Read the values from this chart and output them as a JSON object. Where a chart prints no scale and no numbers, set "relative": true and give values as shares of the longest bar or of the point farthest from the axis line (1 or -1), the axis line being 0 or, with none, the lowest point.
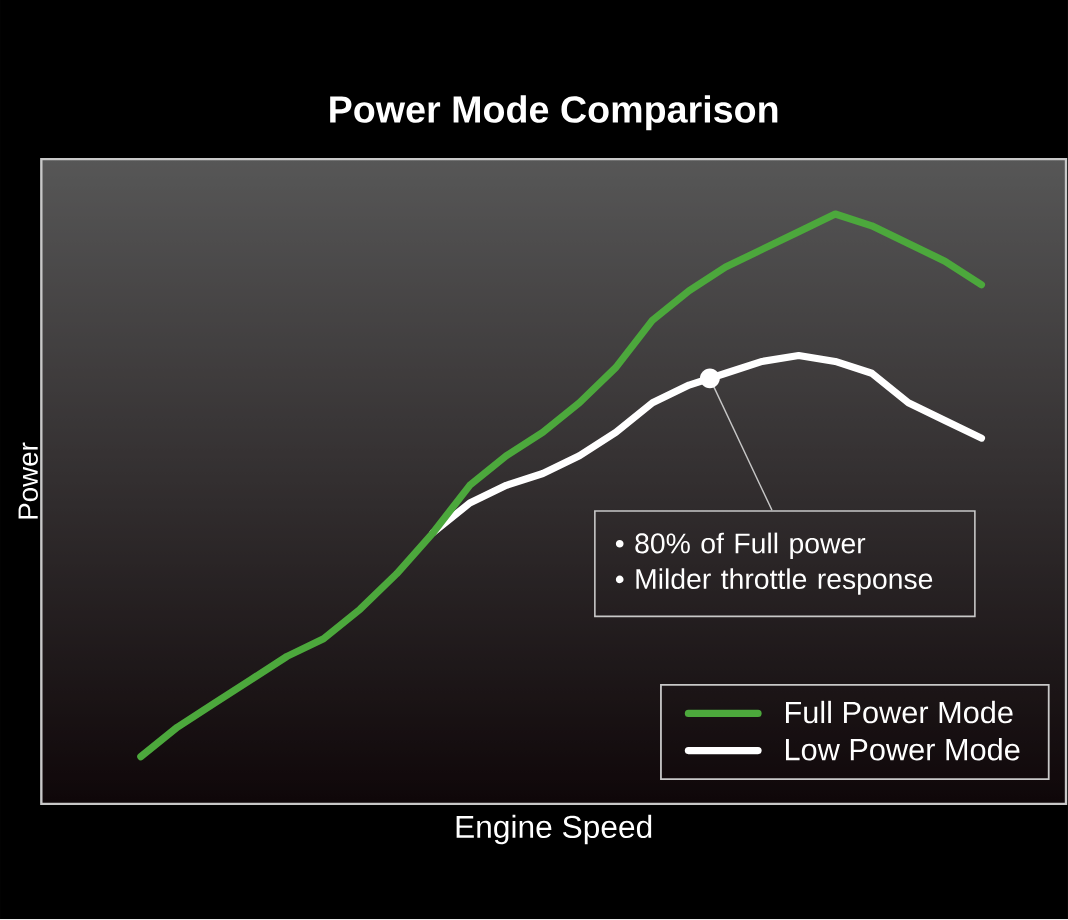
{
  "chart_data": {
    "type": "line",
    "title": "Power Mode Comparison",
    "xlabel": "Engine Speed",
    "ylabel": "Power",
    "relative": true,
    "categories": [
      null,
      null,
      null,
      null,
      null,
      null,
      null,
      null,
      null,
      null,
      null,
      null,
      null,
      null,
      null,
      null,
      null,
      null,
      null,
      null,
      null,
      null,
      null,
      null
    ],
    "series": [
      {
        "name": "Full Power Mode",
        "color": "#4ca83c",
        "values": [
          0.08,
          0.13,
          0.17,
          0.21,
          0.25,
          0.28,
          0.33,
          0.39,
          0.46,
          0.54,
          0.59,
          0.63,
          0.68,
          0.74,
          0.82,
          0.87,
          0.91,
          0.94,
          0.97,
          1,
          0.98,
          0.95,
          0.92,
          0.88
        ]
      },
      {
        "name": "Low Power Mode",
        "color": "#ffffff",
        "values": [
          null,
          null,
          null,
          null,
          null,
          null,
          null,
          null,
          0.46,
          0.51,
          0.54,
          0.56,
          0.59,
          0.63,
          0.68,
          0.71,
          0.73,
          0.75,
          0.76,
          0.75,
          0.73,
          0.68,
          0.65,
          0.62
        ]
      }
    ],
    "legend": "bottom right",
    "annotations": [
      "• 80% of Full power",
      "• Milder throttle response"
    ]
  }
}
